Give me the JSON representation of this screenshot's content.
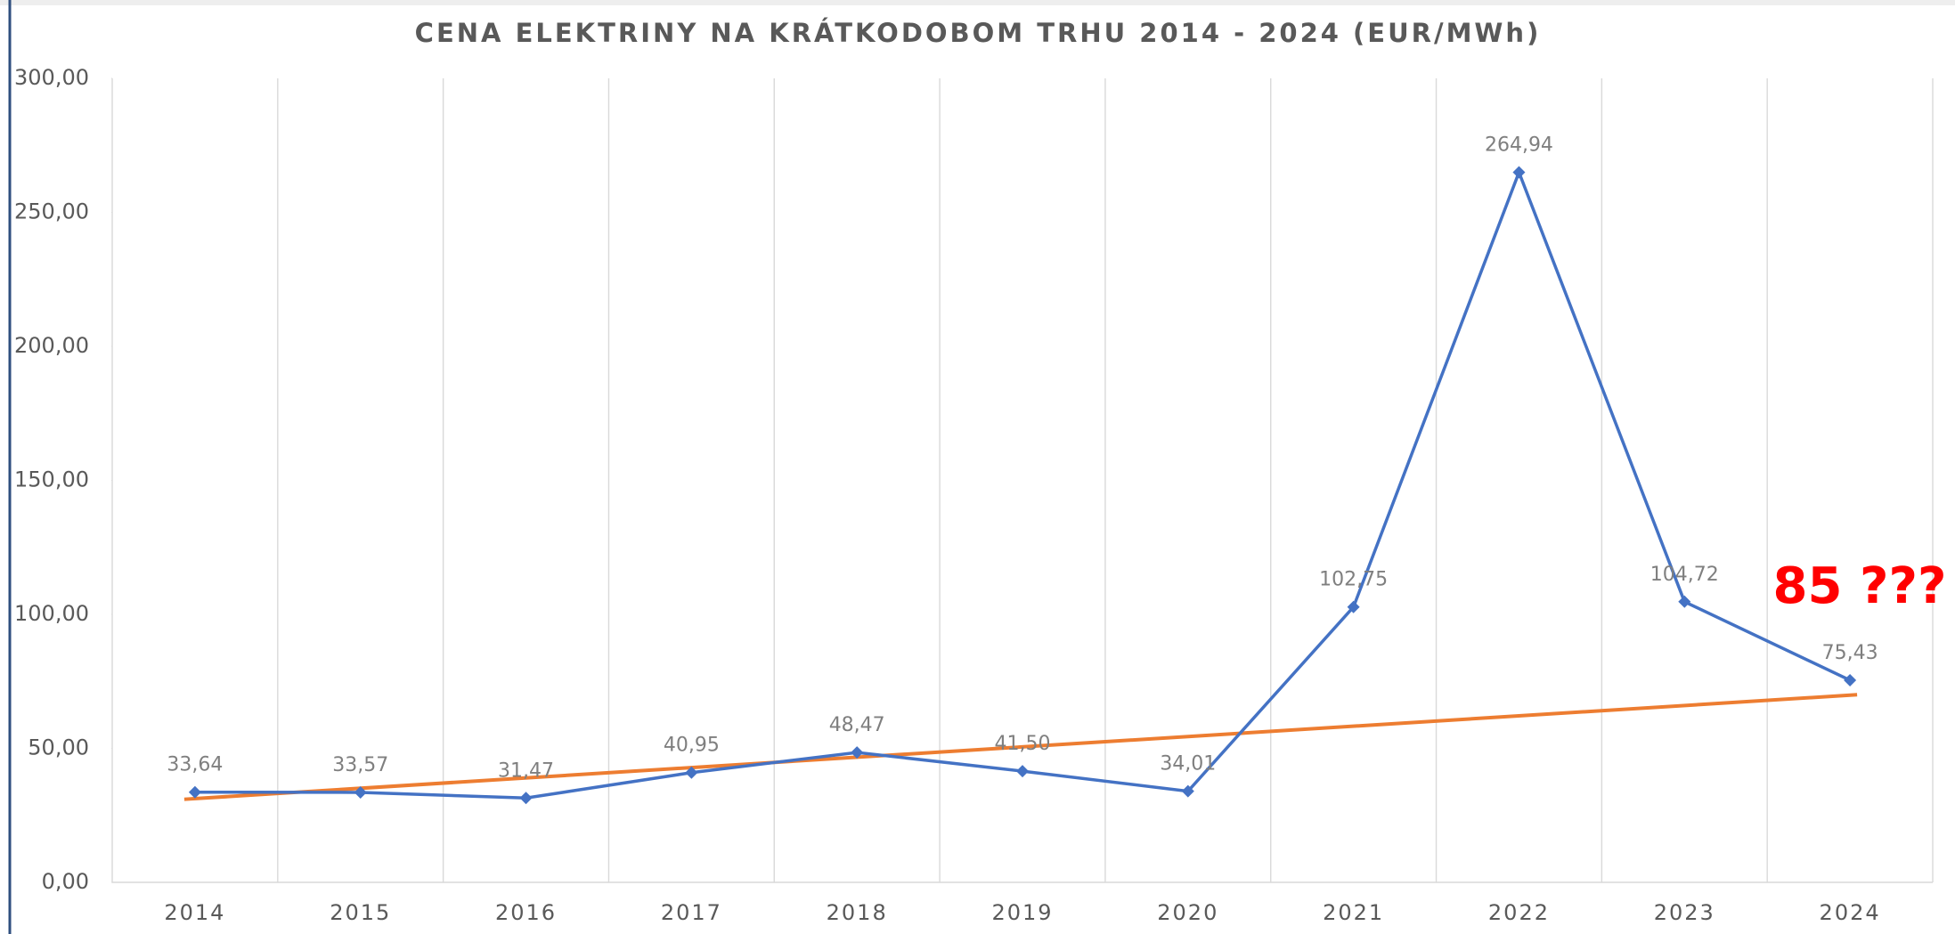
{
  "chart_data": {
    "type": "line",
    "title": "CENA ELEKTRINY NA KRÁTKODOBOM TRHU 2014 - 2024 (EUR/MWh)",
    "categories": [
      "2014",
      "2015",
      "2016",
      "2017",
      "2018",
      "2019",
      "2020",
      "2021",
      "2022",
      "2023",
      "2024"
    ],
    "series": [
      {
        "color": "#4472c4",
        "values": [
          33.64,
          33.57,
          31.47,
          40.95,
          48.47,
          41.5,
          34.01,
          102.75,
          264.94,
          104.72,
          75.43
        ],
        "value_labels": [
          "33,64",
          "33,57",
          "31,47",
          "40,95",
          "48,47",
          "41,50",
          "34,01",
          "102,75",
          "264,94",
          "104,72",
          "75,43"
        ]
      }
    ],
    "trend": {
      "color": "#ed7d31",
      "values": [
        31,
        70
      ]
    },
    "annotation": {
      "text": "85 ???",
      "color": "#ff0000"
    },
    "ylim": [
      0,
      300
    ],
    "yticks": [
      {
        "value": 0,
        "label": "0,00"
      },
      {
        "value": 50,
        "label": "50,00"
      },
      {
        "value": 100,
        "label": "100,00"
      },
      {
        "value": 150,
        "label": "150,00"
      },
      {
        "value": 200,
        "label": "200,00"
      },
      {
        "value": 250,
        "label": "250,00"
      },
      {
        "value": 300,
        "label": "300,00"
      }
    ],
    "grid": "vertical"
  }
}
